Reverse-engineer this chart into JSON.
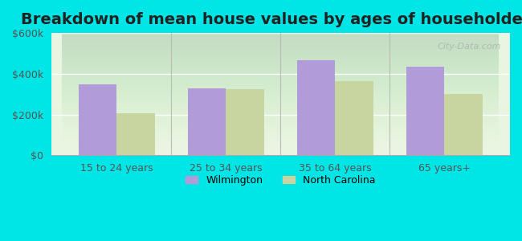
{
  "title": "Breakdown of mean house values by ages of householders",
  "categories": [
    "15 to 24 years",
    "25 to 34 years",
    "35 to 64 years",
    "65 years+"
  ],
  "wilmington": [
    350000,
    330000,
    465000,
    435000
  ],
  "north_carolina": [
    205000,
    325000,
    365000,
    300000
  ],
  "wilmington_color": "#b19cd9",
  "north_carolina_color": "#c8d5a0",
  "background_color": "#00e5e5",
  "plot_bg": "#e8f5e0",
  "ylim": [
    0,
    600000
  ],
  "yticks": [
    0,
    200000,
    400000,
    600000
  ],
  "ytick_labels": [
    "$0",
    "$200k",
    "$400k",
    "$600k"
  ],
  "bar_width": 0.35,
  "legend_wilmington": "Wilmington",
  "legend_nc": "North Carolina",
  "title_fontsize": 14,
  "watermark": "City-Data.com"
}
